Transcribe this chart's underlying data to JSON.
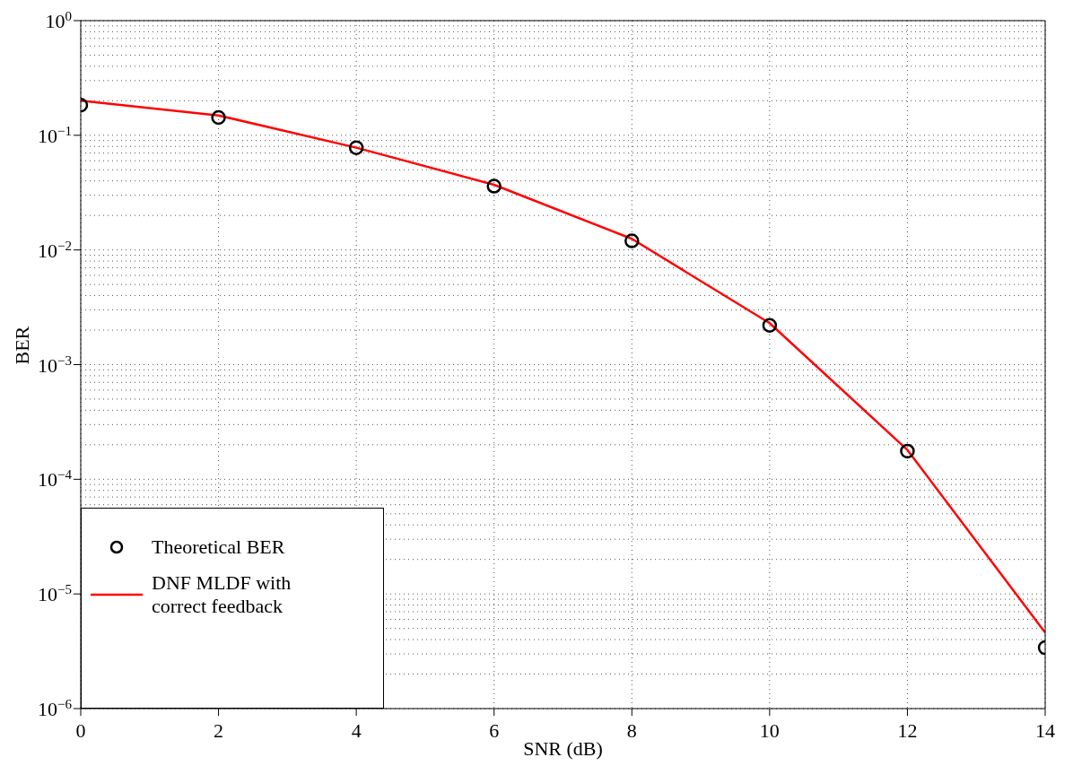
{
  "chart_data": {
    "type": "line",
    "xlabel": "SNR (dB)",
    "ylabel": "BER",
    "x": [
      0,
      2,
      4,
      6,
      8,
      10,
      12,
      14
    ],
    "series": [
      {
        "name": "Theoretical BER",
        "type": "scatter",
        "color": "#000000",
        "marker": "circle",
        "values": [
          0.183,
          0.143,
          0.078,
          0.036,
          0.012,
          0.0022,
          0.000176,
          3.4e-06
        ]
      },
      {
        "name": "DNF MLDF with correct feedback",
        "type": "line",
        "color": "#ff0000",
        "marker": "none",
        "line_style": "solid",
        "values": [
          0.2,
          0.149,
          0.078,
          0.037,
          0.0125,
          0.0023,
          0.00018,
          4.6e-06
        ]
      }
    ],
    "log": "y",
    "xlim": [
      0,
      14
    ],
    "xticks": [
      0,
      2,
      4,
      6,
      8,
      10,
      12,
      14
    ],
    "ylim": [
      1e-06,
      1
    ],
    "yticks": [
      {
        "value": 1e-06,
        "label": "10$^{−6}$"
      },
      {
        "value": 1e-05,
        "label": "10$^{−5}$"
      },
      {
        "value": 0.0001,
        "label": "10$^{−4}$"
      },
      {
        "value": 0.001,
        "label": "10$^{−3}$"
      },
      {
        "value": 0.01,
        "label": "10$^{−2}$"
      },
      {
        "value": 0.1,
        "label": "10$^{−1}$"
      },
      {
        "value": 1,
        "label": "10$^{0}$"
      }
    ],
    "grid": true,
    "legend": "bottom left"
  }
}
